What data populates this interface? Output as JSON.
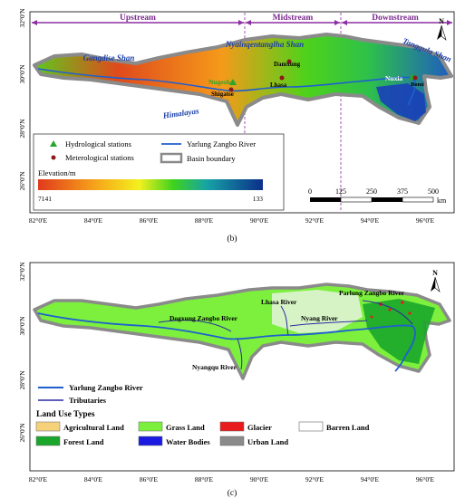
{
  "map_b": {
    "regions": [
      "Upstream",
      "Midstream",
      "Downstream"
    ],
    "ranges": [
      "Gangdise Shan",
      "Nyainqentanglha Shan",
      "Tanggula Shan",
      "Himalayas"
    ],
    "places": [
      "Damxung",
      "Nugesha",
      "Shigatse",
      "Lhasa",
      "Nuxia",
      "Bomi"
    ],
    "legend": {
      "hydro": "Hydrological stations",
      "met": "Meterological stations",
      "river": "Yarlung Zangbo River",
      "boundary": "Basin boundary",
      "elev_title": "Elevation/m",
      "elev_max": "7141",
      "elev_min": "133"
    },
    "scale": {
      "ticks": [
        "0",
        "125",
        "250",
        "375",
        "500"
      ],
      "unit": "km"
    },
    "lat_labels": [
      "32°0'N",
      "30°0'N",
      "28°0'N",
      "26°0'N"
    ],
    "lon_labels": [
      "82°0'E",
      "84°0'E",
      "86°0'E",
      "88°0'E",
      "90°0'E",
      "92°0'E",
      "94°0'E",
      "96°0'E"
    ],
    "caption": "(b)",
    "north": "N",
    "colors": {
      "elev_high": "#e23b1a",
      "elev_mid": "#4fd21a",
      "elev_low": "#0b2e8a",
      "region_arrow": "#8b2ea0"
    }
  },
  "map_c": {
    "rivers": [
      "Parlung Zangbo River",
      "Lhasa River",
      "Dogxung Zangbo River",
      "Nyang River",
      "Nyangqu River"
    ],
    "legend": {
      "river": "Yarlung Zangbo River",
      "tributaries": "Tributaries",
      "title": "Land Use Types",
      "agri": "Agricultural Land",
      "grass": "Grass Land",
      "glacier": "Glacier",
      "barren": "Barren Land",
      "forest": "Forest Land",
      "water": "Water Bodies",
      "urban": "Urban Land"
    },
    "lat_labels": [
      "32°0'N",
      "30°0'N",
      "28°0'N",
      "26°0'N"
    ],
    "lon_labels": [
      "82°0'E",
      "84°0'E",
      "86°0'E",
      "88°0'E",
      "90°0'E",
      "92°0'E",
      "94°0'E",
      "96°0'E"
    ],
    "caption": "(c)",
    "north": "N",
    "colors": {
      "agri": "#f5d27a",
      "grass": "#7cf03c",
      "glacier": "#e81c1c",
      "barren": "#ffffff",
      "forest": "#1aa62a",
      "water": "#1a1ae0",
      "urban": "#8a8a8a"
    }
  }
}
